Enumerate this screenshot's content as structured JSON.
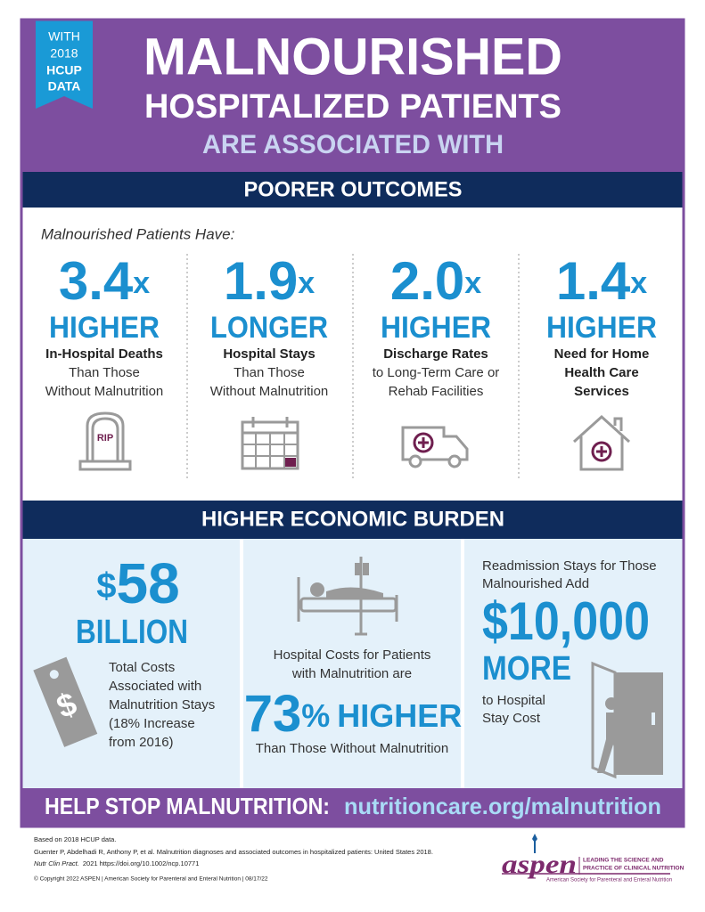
{
  "badge": {
    "lines": [
      "WITH",
      "2018",
      "HCUP",
      "DATA"
    ]
  },
  "header": {
    "title": "MALNOURISHED",
    "subtitle": "HOSPITALIZED PATIENTS",
    "tagline": "ARE ASSOCIATED WITH"
  },
  "outcomes": {
    "heading": "POORER OUTCOMES",
    "intro": "Malnourished Patients Have:",
    "items": [
      {
        "number": "3.4",
        "unit": "x",
        "label": "HIGHER",
        "bold": [
          "In-Hospital Deaths"
        ],
        "lines": [
          "Than Those",
          "Without Malnutrition"
        ],
        "icon_text": "RIP"
      },
      {
        "number": "1.9",
        "unit": "x",
        "label": "LONGER",
        "bold": [
          "Hospital Stays"
        ],
        "lines": [
          "Than Those",
          "Without Malnutrition"
        ]
      },
      {
        "number": "2.0",
        "unit": "x",
        "label": "HIGHER",
        "bold": [
          "Discharge Rates"
        ],
        "lines": [
          "to Long-Term Care or",
          "Rehab Facilities"
        ]
      },
      {
        "number": "1.4",
        "unit": "x",
        "label": "HIGHER",
        "bold": [
          "Need for Home",
          "Health Care",
          "Services"
        ]
      }
    ]
  },
  "economic": {
    "heading": "HIGHER ECONOMIC BURDEN",
    "total": {
      "currency": "$",
      "amount": "58",
      "unit": "BILLION",
      "lines": [
        "Total Costs",
        "Associated with",
        "Malnutrition Stays",
        "(18% Increase",
        "from 2016)"
      ]
    },
    "hospital": {
      "lines": [
        "Hospital Costs for Patients",
        "with Malnutrition are"
      ],
      "number": "73",
      "unit": "%",
      "label": "HIGHER",
      "note": "Than Those Without Malnutrition"
    },
    "readmission": {
      "lines": [
        "Readmission Stays for Those",
        "Malnourished Add"
      ],
      "amount": "$10,000",
      "label": "MORE",
      "note_lines": [
        "to Hospital",
        "Stay Cost"
      ]
    }
  },
  "cta": {
    "text": "HELP STOP MALNUTRITION:",
    "link": "nutritioncare.org/malnutrition"
  },
  "footer": {
    "lines": [
      "Based on 2018 HCUP data.",
      "Guenter P, Abdelhadi R, Anthony P, et al. Malnutrition diagnoses and associated outcomes in hospitalized patients: United States 2018."
    ],
    "journal": "Nutr Clin Pract.",
    "citation": "2021  https://doi.org/10.1002/ncp.10771",
    "copyright": "© Copyright 2022 ASPEN | American Society for Parenteral and Enteral Nutrition | 08/17/22"
  },
  "logo": {
    "name": "aspen",
    "tagline_lines": [
      "LEADING THE SCIENCE AND",
      "PRACTICE OF CLINICAL NUTRITION"
    ],
    "org": "American Society for Parenteral and Enteral Nutrition"
  }
}
